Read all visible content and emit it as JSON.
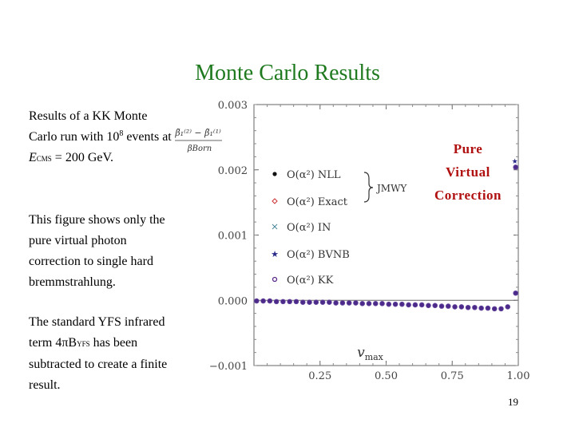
{
  "slide": {
    "title": "Monte Carlo Results",
    "para1_a": "Results of a KK Monte Carlo run with 10",
    "para1_exp": "8",
    "para1_b": " events at",
    "para1_c_var": "E",
    "para1_c_sub": "CMS",
    "para1_c_rest": " = 200 GeV.",
    "para2": "This figure shows only the pure virtual photon correction to single hard bremmstrahlung.",
    "para3_a": "The standard YFS infrared term 4πB",
    "para3_sub": "YFS",
    "para3_b": " has been subtracted to create a finite result.",
    "pure_lines": [
      "Pure",
      "Virtual",
      "Correction"
    ],
    "page_number": "19"
  },
  "chart_data": {
    "type": "scatter",
    "xlabel": "v_max",
    "ylabel_num": "β̃₁⁽²⁾ − β̃₁⁽¹⁾",
    "ylabel_den": "βBorn",
    "xlim": [
      0.0,
      1.0
    ],
    "ylim": [
      -0.001,
      0.003
    ],
    "x_ticks": [
      "0.25",
      "0.50",
      "0.75",
      "1.00"
    ],
    "x_tick_values": [
      0.25,
      0.5,
      0.75,
      1.0
    ],
    "y_ticks": [
      "0.003",
      "0.002",
      "0.001",
      "0.000",
      "−0.001"
    ],
    "y_tick_values": [
      0.003,
      0.002,
      0.001,
      0.0,
      -0.001
    ],
    "brace_label": "JMWY",
    "legend": [
      {
        "label": "O(α²) NLL",
        "marker": "dot",
        "color": "#111111"
      },
      {
        "label": "O(α²) Exact",
        "marker": "open-diamond",
        "color": "#cc3333"
      },
      {
        "label": "O(α²) IN",
        "marker": "cross",
        "color": "#4a8a9a"
      },
      {
        "label": "O(α²) BVNB",
        "marker": "star",
        "color": "#2a2a8a"
      },
      {
        "label": "O(α²) KK",
        "marker": "circle",
        "color": "#5a2a8a"
      }
    ],
    "series": [
      {
        "name": "O(α²) KK",
        "color": "#4b2a8a",
        "x": [
          0.01,
          0.035,
          0.06,
          0.085,
          0.11,
          0.135,
          0.16,
          0.185,
          0.21,
          0.235,
          0.26,
          0.285,
          0.31,
          0.335,
          0.36,
          0.385,
          0.41,
          0.435,
          0.46,
          0.485,
          0.51,
          0.535,
          0.56,
          0.585,
          0.61,
          0.635,
          0.66,
          0.685,
          0.71,
          0.735,
          0.76,
          0.785,
          0.81,
          0.835,
          0.86,
          0.885,
          0.91,
          0.935,
          0.96,
          0.99
        ],
        "y": [
          -1e-05,
          -1e-05,
          -1e-05,
          -2e-05,
          -2e-05,
          -2e-05,
          -2e-05,
          -3e-05,
          -3e-05,
          -3e-05,
          -3e-05,
          -3e-05,
          -4e-05,
          -4e-05,
          -4e-05,
          -4e-05,
          -5e-05,
          -5e-05,
          -5e-05,
          -5e-05,
          -6e-05,
          -6e-05,
          -6e-05,
          -7e-05,
          -7e-05,
          -7e-05,
          -8e-05,
          -8e-05,
          -9e-05,
          -9e-05,
          -0.0001,
          -0.0001,
          -0.00011,
          -0.00011,
          -0.00012,
          -0.00012,
          -0.00013,
          -0.00013,
          -0.0001,
          0.00011
        ]
      },
      {
        "name": "O(α²) KK outlier",
        "color": "#4b2a8a",
        "x": [
          0.99
        ],
        "y": [
          0.00204
        ]
      }
    ]
  }
}
